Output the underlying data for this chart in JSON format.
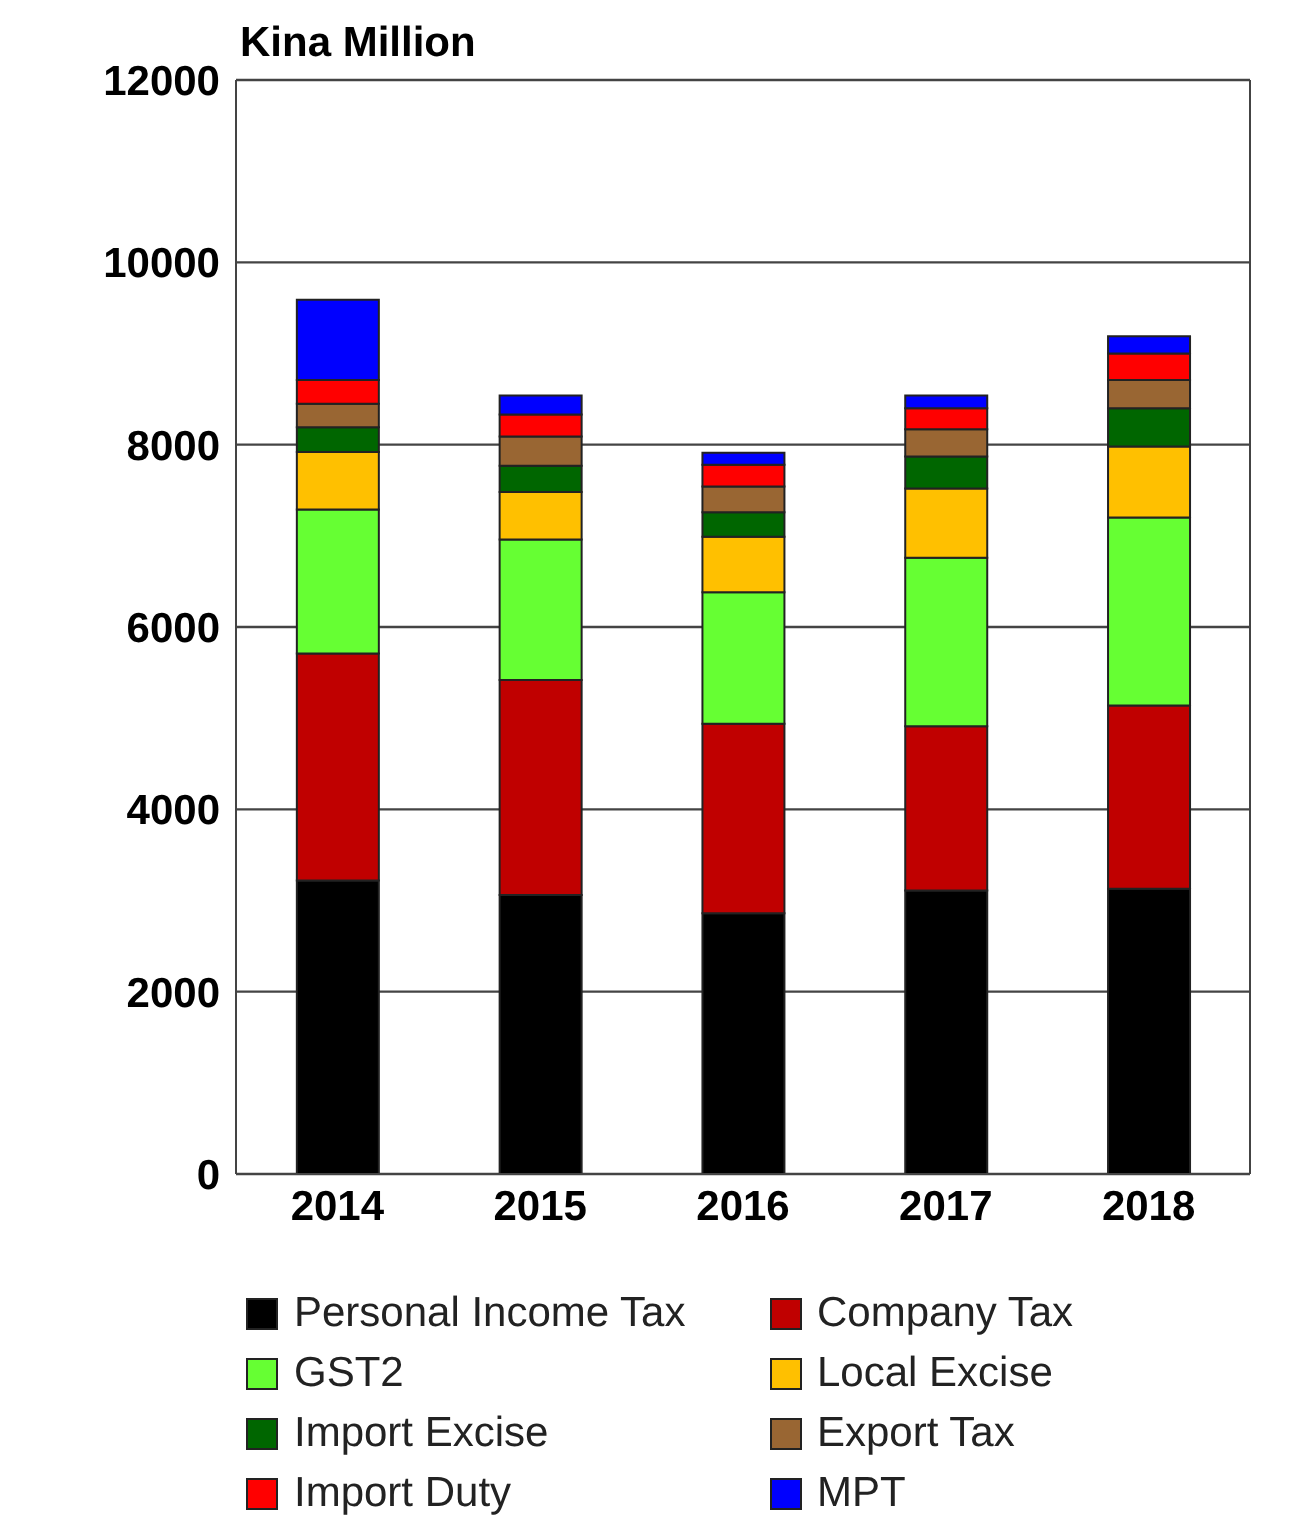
{
  "chart_data": {
    "type": "bar",
    "stacked": true,
    "title": "Kina Million",
    "categories": [
      "2014",
      "2015",
      "2016",
      "2017",
      "2018"
    ],
    "series": [
      {
        "name": "Personal Income Tax",
        "color": "#000000",
        "values": [
          3220,
          3060,
          2860,
          3110,
          3130
        ]
      },
      {
        "name": "Company Tax",
        "color": "#c00000",
        "values": [
          2490,
          2360,
          2080,
          1800,
          2010
        ]
      },
      {
        "name": "GST2",
        "color": "#66ff33",
        "values": [
          1580,
          1540,
          1440,
          1850,
          2060
        ]
      },
      {
        "name": "Local Excise",
        "color": "#ffc000",
        "values": [
          630,
          520,
          610,
          760,
          780
        ]
      },
      {
        "name": "Import Excise",
        "color": "#006600",
        "values": [
          270,
          290,
          270,
          350,
          420
        ]
      },
      {
        "name": "Export Tax",
        "color": "#996633",
        "values": [
          260,
          320,
          280,
          300,
          310
        ]
      },
      {
        "name": "Import Duty",
        "color": "#ff0000",
        "values": [
          260,
          240,
          240,
          230,
          290
        ]
      },
      {
        "name": "MPT",
        "color": "#0000ff",
        "values": [
          880,
          210,
          130,
          140,
          190
        ]
      }
    ],
    "ylim": [
      0,
      12000
    ],
    "yticks": [
      0,
      2000,
      4000,
      6000,
      8000,
      10000,
      12000
    ],
    "grid": "y",
    "legend": "bottom"
  }
}
